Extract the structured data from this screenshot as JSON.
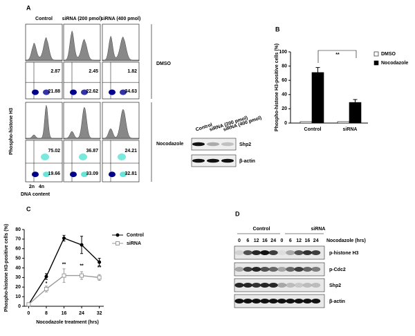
{
  "panel_labels": [
    "A",
    "B",
    "C",
    "D"
  ],
  "panel_a": {
    "columns": [
      "Control",
      "siRNA (200 pmol)",
      "siRNA (400 pmol)"
    ],
    "rows": [
      "DMSO",
      "Nocodazole"
    ],
    "y_label": "Phospho-histone H3",
    "x_label": "DNA content",
    "x_ticks": [
      "2n",
      "4n"
    ],
    "quadrant_values": [
      [
        [
          2.87,
          21.88
        ],
        [
          2.45,
          22.62
        ],
        [
          1.82,
          34.63
        ]
      ],
      [
        [
          75.02,
          19.66
        ],
        [
          36.87,
          33.09
        ],
        [
          24.21,
          32.81
        ]
      ]
    ],
    "blot": {
      "lanes": [
        "Control",
        "siRNA (200 pmol)",
        "siRNA (400 pmol)"
      ],
      "bands": [
        "Shp2",
        "β-actin"
      ]
    }
  },
  "chart_data": [
    {
      "type": "bar",
      "y_label": "Phospho-histone H3-positive cells (%)",
      "categories": [
        "Control",
        "siRNA"
      ],
      "series": [
        {
          "name": "DMSO",
          "color": "#ffffff",
          "values": [
            2,
            2
          ]
        },
        {
          "name": "Nocodazole",
          "color": "#000000",
          "values": [
            71,
            29
          ],
          "errors": [
            7,
            4
          ]
        }
      ],
      "ylim": [
        0,
        100
      ],
      "yticks": [
        0,
        20,
        40,
        60,
        80,
        100
      ],
      "annotation": "**"
    },
    {
      "type": "line",
      "x_label": "Nocodazole treatment (hrs)",
      "y_label": "Phospho-histone H3-positive cells (%)",
      "x": [
        0,
        8,
        16,
        24,
        32
      ],
      "xlim": [
        -2,
        34
      ],
      "xticks": [
        0,
        8,
        16,
        24,
        32
      ],
      "ylim": [
        0,
        80
      ],
      "yticks": [
        0,
        10,
        20,
        30,
        40,
        50,
        60,
        70,
        80
      ],
      "series": [
        {
          "name": "Control",
          "color": "#000000",
          "values": [
            2,
            31,
            71,
            64,
            46
          ],
          "errors": [
            0,
            3,
            3,
            9,
            4
          ]
        },
        {
          "name": "siRNA",
          "color": "#999999",
          "values": [
            2,
            18,
            32,
            32,
            30
          ],
          "errors": [
            0,
            3,
            7,
            4,
            3
          ]
        }
      ],
      "annotations": [
        "",
        "*",
        "**",
        "**",
        "**"
      ]
    }
  ],
  "panel_d": {
    "groups": [
      "Control",
      "siRNA"
    ],
    "time_label": "Nocodazole (hrs)",
    "times": [
      "0",
      "6",
      "12",
      "16",
      "24",
      "0",
      "6",
      "12",
      "16",
      "24"
    ],
    "bands": [
      "p-histone H3",
      "p-Cdc2",
      "Shp2",
      "β-actin"
    ]
  }
}
